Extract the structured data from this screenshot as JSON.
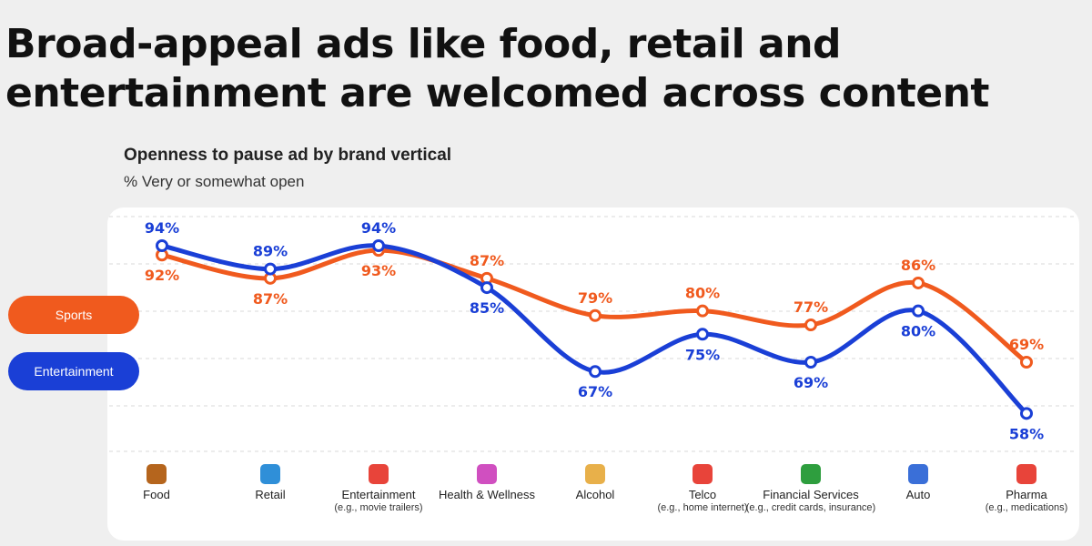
{
  "headline": "Broad-appeal ads like food, retail and entertainment are welcomed across content",
  "chart_data": {
    "type": "line",
    "title": "Openness to pause ad by brand vertical",
    "subtitle": "% Very or somewhat open",
    "categories": [
      "Food",
      "Retail",
      "Entertainment",
      "Health & Wellness",
      "Alcohol",
      "Telco",
      "Financial Services",
      "Auto",
      "Pharma"
    ],
    "category_notes": [
      "",
      "",
      "(e.g., movie trailers)",
      "",
      "",
      "(e.g., home internet)",
      "(e.g., credit cards, insurance)",
      "",
      "(e.g., medications)"
    ],
    "series": [
      {
        "name": "Sports",
        "color": "#f05a1e",
        "values": [
          92,
          87,
          93,
          87,
          79,
          80,
          77,
          86,
          69
        ],
        "labels": [
          "92%",
          "87%",
          "93%",
          "87%",
          "79%",
          "80%",
          "77%",
          "86%",
          "69%"
        ]
      },
      {
        "name": "Entertainment",
        "color": "#1a3fd6",
        "values": [
          94,
          89,
          94,
          85,
          67,
          75,
          69,
          80,
          58
        ],
        "labels": [
          "94%",
          "89%",
          "94%",
          "85%",
          "67%",
          "75%",
          "69%",
          "80%",
          "58%"
        ]
      }
    ],
    "legend_position": "left",
    "grid": true,
    "ylim": [
      50,
      100
    ],
    "icons": [
      "burger-icon",
      "shopping-bag-icon",
      "popcorn-icon",
      "flower-icon",
      "beer-icon",
      "telephone-icon",
      "money-icon",
      "car-icon",
      "pill-icon"
    ],
    "icon_colors": [
      "#b5651d",
      "#2f8fd8",
      "#e8443a",
      "#d04fc0",
      "#e8b04a",
      "#e8443a",
      "#2e9e3e",
      "#3a6fd8",
      "#e8443a"
    ]
  }
}
